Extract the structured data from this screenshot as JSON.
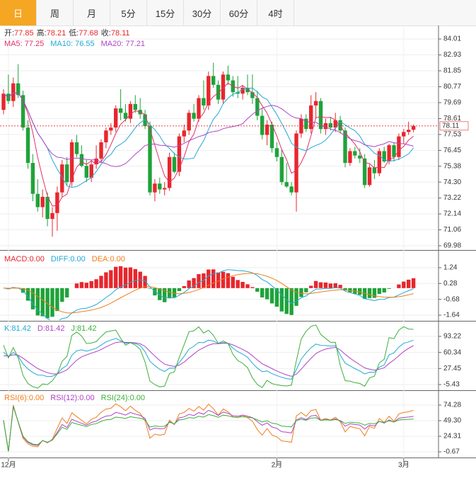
{
  "tabs": [
    "日",
    "周",
    "月",
    "5分",
    "15分",
    "30分",
    "60分",
    "4时"
  ],
  "selected_tab": 0,
  "chart_data": {
    "type": "candlestick",
    "up_color": "#e8262d",
    "down_color": "#1fa33a",
    "categories": [
      null,
      "12月",
      null,
      null,
      null,
      null,
      null,
      null,
      null,
      null,
      null,
      null,
      null,
      null,
      null,
      null,
      null,
      null,
      null,
      null,
      null,
      null,
      null,
      null,
      null,
      null,
      null,
      null,
      null,
      null,
      null,
      null,
      null,
      null,
      null,
      null,
      null,
      null,
      null,
      null,
      null,
      null,
      null,
      null,
      null,
      null,
      null,
      null,
      null,
      null,
      null,
      null,
      null,
      null,
      null,
      null,
      "2月",
      null,
      null,
      null,
      null,
      null,
      null,
      null,
      null,
      null,
      null,
      null,
      null,
      null,
      null,
      null,
      null,
      null,
      null,
      null,
      null,
      null,
      null,
      null,
      null,
      null,
      "3月",
      null,
      null
    ],
    "open": [
      79.2,
      80.3,
      79.8,
      81.0,
      80.2,
      78.0,
      75.6,
      73.5,
      72.6,
      73.3,
      71.8,
      72.2,
      73.6,
      75.5,
      74.3,
      77.0,
      76.2,
      75.4,
      74.6,
      75.5,
      75.9,
      77.0,
      77.8,
      78.0,
      79.3,
      79.0,
      78.6,
      79.6,
      79.2,
      78.9,
      78.1,
      73.6,
      74.2,
      73.8,
      73.9,
      76.0,
      75.0,
      77.4,
      77.8,
      79.0,
      78.6,
      80.0,
      79.5,
      81.5,
      80.9,
      79.9,
      81.6,
      81.2,
      80.4,
      80.3,
      80.7,
      80.4,
      80.0,
      78.8,
      77.5,
      78.2,
      76.6,
      76.0,
      74.3,
      74.0,
      73.6,
      77.6,
      78.6,
      77.9,
      79.5,
      79.8,
      77.9,
      78.3,
      78.0,
      78.5,
      77.8,
      75.6,
      76.4,
      76.1,
      75.9,
      74.1,
      75.3,
      74.9,
      76.4,
      75.7,
      76.8,
      76.0,
      77.4,
      77.7,
      77.85
    ],
    "high": [
      80.6,
      81.6,
      81.4,
      82.3,
      80.5,
      78.5,
      76.2,
      74.5,
      73.8,
      73.6,
      72.6,
      74.0,
      75.8,
      76.0,
      77.2,
      77.5,
      76.8,
      75.8,
      75.8,
      76.8,
      77.2,
      78.0,
      78.3,
      79.5,
      80.6,
      79.6,
      79.8,
      80.2,
      80.0,
      79.2,
      78.4,
      74.5,
      74.6,
      74.3,
      76.3,
      76.3,
      77.6,
      78.2,
      79.2,
      79.6,
      80.2,
      81.2,
      81.8,
      82.4,
      81.2,
      81.8,
      82.2,
      81.5,
      81.5,
      80.9,
      81.6,
      81.6,
      80.5,
      79.3,
      78.5,
      78.4,
      77.0,
      76.5,
      75.6,
      74.3,
      77.8,
      78.9,
      78.9,
      80.2,
      80.4,
      80.0,
      78.6,
      78.7,
      79.0,
      78.8,
      78.0,
      76.6,
      76.7,
      76.6,
      76.2,
      75.5,
      75.8,
      76.6,
      76.7,
      76.9,
      77.0,
      77.6,
      77.9,
      78.4,
      78.21
    ],
    "low": [
      78.9,
      79.6,
      79.4,
      80.0,
      77.8,
      75.2,
      73.0,
      72.3,
      71.9,
      71.3,
      70.6,
      71.0,
      73.3,
      74.1,
      74.0,
      76.0,
      75.3,
      74.3,
      74.3,
      75.2,
      75.6,
      76.6,
      77.5,
      77.7,
      78.5,
      78.4,
      78.3,
      79.0,
      78.6,
      77.9,
      73.4,
      73.0,
      73.5,
      73.4,
      73.7,
      74.9,
      74.7,
      77.0,
      77.5,
      78.4,
      78.4,
      79.2,
      79.2,
      80.7,
      79.6,
      79.6,
      80.9,
      80.1,
      80.0,
      79.9,
      80.2,
      79.6,
      78.5,
      77.2,
      76.8,
      76.3,
      75.7,
      74.1,
      73.9,
      73.4,
      72.3,
      77.3,
      77.7,
      77.6,
      78.6,
      77.6,
      77.5,
      77.8,
      77.7,
      77.6,
      75.3,
      75.4,
      75.9,
      75.6,
      73.9,
      74.0,
      74.5,
      74.7,
      75.6,
      75.5,
      75.7,
      75.8,
      76.9,
      77.5,
      77.68
    ],
    "close": [
      80.3,
      79.8,
      81.0,
      80.2,
      78.0,
      75.6,
      73.5,
      72.6,
      73.3,
      71.8,
      72.2,
      73.6,
      75.5,
      74.3,
      77.0,
      76.2,
      75.4,
      74.6,
      75.5,
      75.9,
      77.0,
      77.8,
      78.0,
      79.3,
      79.0,
      78.6,
      79.6,
      79.2,
      78.9,
      78.1,
      73.6,
      74.2,
      73.8,
      73.9,
      76.0,
      75.0,
      77.4,
      77.8,
      79.0,
      78.6,
      80.0,
      79.5,
      81.5,
      80.9,
      79.9,
      81.6,
      81.2,
      80.4,
      80.3,
      80.7,
      80.4,
      80.0,
      78.8,
      77.5,
      78.2,
      76.6,
      76.0,
      74.3,
      74.0,
      73.6,
      77.6,
      78.6,
      77.9,
      79.5,
      79.8,
      77.9,
      78.3,
      78.0,
      78.5,
      77.8,
      75.6,
      76.4,
      76.1,
      75.9,
      74.1,
      75.3,
      74.9,
      76.4,
      75.7,
      76.8,
      76.0,
      77.4,
      77.7,
      77.85,
      78.11
    ],
    "ylim": [
      69.74,
      84.83
    ],
    "yticks": [
      84.01,
      82.93,
      81.85,
      80.77,
      79.69,
      78.61,
      77.53,
      76.45,
      75.38,
      {
        "value": 74.3,
        "label": "74.30"
      },
      73.22,
      72.14,
      71.06,
      69.98
    ],
    "ohlc_labels": [
      "开:",
      "高:",
      "低:",
      "收:"
    ],
    "ma_legend": [
      {
        "text": "MA5: 77.25",
        "color": "#e0306a",
        "period": 5
      },
      {
        "text": "MA10: 76.55",
        "color": "#22a9d6",
        "period": 10
      },
      {
        "text": "MA20: 77.21",
        "color": "#b043c6",
        "period": 20
      }
    ],
    "indicators": [
      {
        "type": "macd",
        "legend": [
          {
            "text": "MACD:0.00",
            "color": "#e8262d"
          },
          {
            "text": "DIFF:0.00",
            "color": "#22a9d6"
          },
          {
            "text": "DEA:0.00",
            "color": "#f07d1c"
          }
        ],
        "ylim": [
          -1.94,
          2.14
        ],
        "yticks": [
          1.24,
          0.28,
          -0.68,
          -1.64
        ]
      },
      {
        "type": "kdj",
        "legend": [
          {
            "text": "K:81.42",
            "color": "#22a9d6"
          },
          {
            "text": "D:81.42",
            "color": "#b043c6"
          },
          {
            "text": "J:81.42",
            "color": "#3bb03b"
          }
        ],
        "ylim": [
          -15.6,
          122.2
        ],
        "yticks": [
          93.22,
          60.34,
          27.45,
          -5.43
        ]
      },
      {
        "type": "rsi",
        "legend": [
          {
            "text": "RSI(6):0.00",
            "color": "#f07d1c",
            "period": 6
          },
          {
            "text": "RSI(12):0.00",
            "color": "#b043c6",
            "period": 12
          },
          {
            "text": "RSI(24):0.00",
            "color": "#3bb03b",
            "period": 24
          }
        ],
        "ylim": [
          -8.62,
          95.86
        ],
        "yticks": [
          74.28,
          {
            "value": 49.3,
            "label": "49.30"
          },
          24.31,
          -0.67
        ]
      }
    ]
  }
}
